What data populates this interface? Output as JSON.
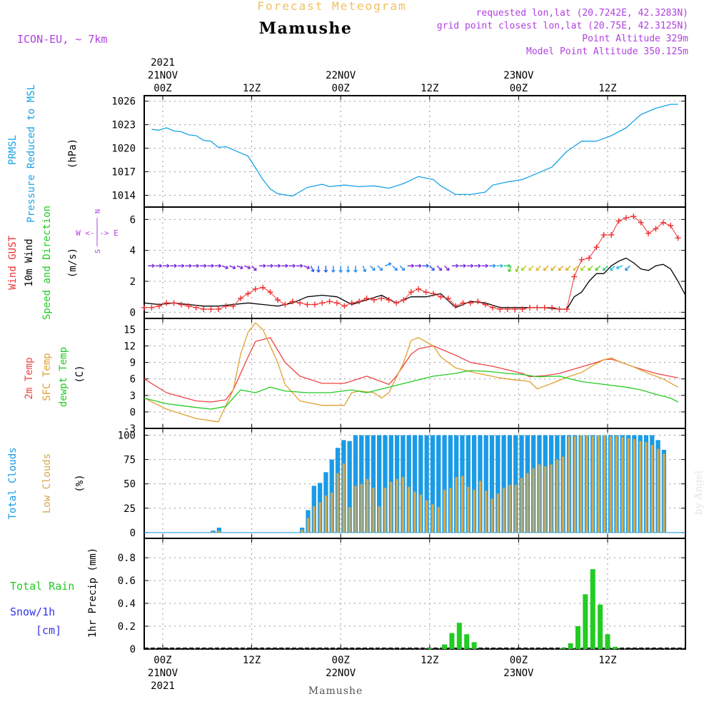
{
  "header": {
    "title": "Forecast Meteogram",
    "location": "Mamushe",
    "model": "ICON-EU, ~ 7km",
    "requested": "requested lon,lat (20.7242E, 42.3283N)",
    "grid": "grid point closest lon,lat (20.75E, 42.3125N)",
    "point_alt": "Point Altitude 329m",
    "model_alt": "Model Point Altitude 350.125m",
    "watermark": "by Angel",
    "footer_location": "Mamushe"
  },
  "time_axis": {
    "top_labels": [
      "00Z",
      "12Z",
      "00Z",
      "12Z",
      "00Z",
      "12Z"
    ],
    "top_dates": [
      "21NOV",
      "",
      "22NOV",
      "",
      "23NOV",
      ""
    ],
    "top_year": "2021",
    "bottom_labels": [
      "00Z",
      "12Z",
      "00Z",
      "12Z",
      "00Z",
      "12Z"
    ],
    "bottom_dates": [
      "21NOV",
      "",
      "22NOV",
      "",
      "23NOV",
      ""
    ],
    "bottom_year": "2021",
    "tick_hours": [
      0,
      12,
      24,
      36,
      48,
      60
    ],
    "hour_range": [
      -2.5,
      70.5
    ]
  },
  "labels": {
    "prmsl_1": "PRMSL",
    "prmsl_2": "Pressure Reduced to MSL",
    "prmsl_unit": "(hPa)",
    "gust": "Wind GUST",
    "wind10": "10m Wind",
    "speeddir": "Speed and Direction",
    "wind_unit": "(m/s)",
    "compass_n": "N",
    "compass_s": "S",
    "compass_we": "W <-|-> E",
    "t2m": "2m Temp",
    "sfc": "SFC Temp",
    "dewpt": "dewpt Temp",
    "temp_unit": "(C)",
    "total_clouds": "Total Clouds",
    "low_clouds": "Low Clouds",
    "cloud_unit": "(%)",
    "total_rain": "Total  Rain",
    "snow": "Snow/1h",
    "snow_unit": "[cm]",
    "precip": "1hr Precip (mm)"
  },
  "colors": {
    "pressure": "#1aa3e6",
    "gust": "#ee3333",
    "wind": "#000000",
    "t2m": "#ee4444",
    "sfc": "#e0a030",
    "dewpt": "#22cc22",
    "total_clouds": "#1a9be6",
    "low_clouds": "#d4a850",
    "rain": "#22cc22",
    "snow": "#3333ee",
    "purple": "#b040e0",
    "title_orange": "#f0c060"
  },
  "chart_data": [
    {
      "id": "pressure",
      "type": "line",
      "title": "PRMSL - Pressure Reduced to MSL",
      "ylabel": "(hPa)",
      "ylim": [
        1012.5,
        1026.7
      ],
      "yticks": [
        1014,
        1017,
        1020,
        1023,
        1026
      ],
      "x": [
        -1.5,
        -0.5,
        0.5,
        1.5,
        2.5,
        3.5,
        4.5,
        5.5,
        6.5,
        7.5,
        8.5,
        9.5,
        11.5,
        13.5,
        14.5,
        15.5,
        17.5,
        19.5,
        21.5,
        22.5,
        24.5,
        26.5,
        28.5,
        30.5,
        32.5,
        34.5,
        36.5,
        37.5,
        39.5,
        41.5,
        43.5,
        44.5,
        46.5,
        48.5,
        50.5,
        52.5,
        54.5,
        56.5,
        58.5,
        60.5,
        62.5,
        64.5,
        66.5,
        68.5,
        69.5
      ],
      "y": [
        1022.4,
        1022.3,
        1022.6,
        1022.2,
        1022.1,
        1021.7,
        1021.6,
        1021.0,
        1020.9,
        1020.1,
        1020.2,
        1019.8,
        1019.0,
        1016.0,
        1014.8,
        1014.2,
        1013.9,
        1015.0,
        1015.4,
        1015.1,
        1015.3,
        1015.1,
        1015.2,
        1014.9,
        1015.5,
        1016.4,
        1016.0,
        1015.2,
        1014.1,
        1014.1,
        1014.4,
        1015.3,
        1015.7,
        1016.0,
        1016.8,
        1017.6,
        1019.6,
        1020.9,
        1020.9,
        1021.6,
        1022.6,
        1024.3,
        1025.1,
        1025.6,
        1025.6
      ]
    },
    {
      "id": "wind",
      "type": "line",
      "title": "Wind GUST / 10m Wind Speed and Direction",
      "ylabel": "(m/s)",
      "ylim": [
        -0.4,
        6.8
      ],
      "yticks": [
        0,
        2,
        4,
        6
      ],
      "series": [
        {
          "name": "Wind GUST",
          "color": "#ee3333",
          "marker": "plus",
          "x": [
            -2.5,
            -1.5,
            -0.5,
            0.5,
            1.5,
            2.5,
            3.5,
            4.5,
            5.5,
            6.5,
            7.5,
            8.5,
            9.5,
            10.5,
            11.5,
            12.5,
            13.5,
            14.5,
            15.5,
            16.5,
            17.5,
            18.5,
            19.5,
            20.5,
            21.5,
            22.5,
            23.5,
            24.5,
            25.5,
            26.5,
            27.5,
            28.5,
            29.5,
            30.5,
            31.5,
            32.5,
            33.5,
            34.5,
            35.5,
            36.5,
            37.5,
            38.5,
            39.5,
            40.5,
            41.5,
            42.5,
            43.5,
            44.5,
            45.5,
            46.5,
            47.5,
            48.5,
            49.5,
            50.5,
            51.5,
            52.5,
            53.5,
            54.5,
            55.5,
            56.5,
            57.5,
            58.5,
            59.5,
            60.5,
            61.5,
            62.5,
            63.5,
            64.5,
            65.5,
            66.5,
            67.5,
            68.5,
            69.5
          ],
          "y": [
            0.3,
            0.3,
            0.4,
            0.6,
            0.6,
            0.5,
            0.4,
            0.3,
            0.2,
            0.2,
            0.2,
            0.4,
            0.4,
            0.9,
            1.2,
            1.5,
            1.6,
            1.3,
            0.8,
            0.5,
            0.7,
            0.6,
            0.5,
            0.5,
            0.6,
            0.7,
            0.6,
            0.4,
            0.6,
            0.7,
            0.9,
            0.8,
            0.9,
            0.8,
            0.6,
            0.8,
            1.3,
            1.5,
            1.3,
            1.2,
            1.0,
            0.9,
            0.4,
            0.6,
            0.6,
            0.7,
            0.5,
            0.3,
            0.2,
            0.2,
            0.2,
            0.2,
            0.3,
            0.3,
            0.3,
            0.3,
            0.2,
            0.2,
            2.3,
            3.4,
            3.5,
            4.2,
            5.0,
            5.0,
            5.9,
            6.1,
            6.2,
            5.8,
            5.1,
            5.4,
            5.8,
            5.6,
            4.8
          ]
        },
        {
          "name": "10m Wind",
          "color": "#000000",
          "marker": "none",
          "x": [
            -2.5,
            -0.5,
            1.5,
            3.5,
            5.5,
            7.5,
            9.5,
            11.5,
            13.5,
            15.5,
            17.5,
            19.5,
            21.5,
            23.5,
            25.5,
            27.5,
            29.5,
            31.5,
            33.5,
            35.5,
            37.5,
            39.5,
            41.5,
            43.5,
            45.5,
            47.5,
            49.5,
            51.5,
            53.5,
            54.5,
            55.5,
            56.5,
            57.5,
            58.5,
            59.5,
            60.5,
            61.5,
            62.5,
            63.5,
            64.5,
            65.5,
            66.5,
            67.5,
            68.5,
            69.5,
            70.5
          ],
          "y": [
            0.6,
            0.5,
            0.6,
            0.5,
            0.4,
            0.4,
            0.5,
            0.6,
            0.5,
            0.4,
            0.6,
            1.0,
            1.1,
            1.0,
            0.5,
            0.8,
            1.1,
            0.6,
            1.0,
            1.0,
            1.2,
            0.3,
            0.7,
            0.6,
            0.3,
            0.3,
            0.3,
            0.3,
            0.2,
            0.2,
            1.0,
            1.3,
            2.0,
            2.5,
            2.5,
            3.0,
            3.3,
            3.5,
            3.2,
            2.8,
            2.7,
            3.0,
            3.1,
            2.8,
            2.0,
            1.1
          ]
        }
      ],
      "barbs": {
        "y_level": 3.0,
        "dirs": [
          "E",
          "E",
          "E",
          "E",
          "E",
          "E",
          "E",
          "E",
          "E",
          "E",
          "ESE",
          "ESE",
          "ESE",
          "ESE",
          "SE",
          "E",
          "E",
          "E",
          "E",
          "E",
          "E",
          "ESE",
          "SSE",
          "S",
          "S",
          "S",
          "S",
          "S",
          "S",
          "SSE",
          "SE",
          "SE",
          "ENE",
          "SE",
          "SE",
          "E",
          "E",
          "E",
          "SE",
          "SE",
          "SE",
          "E",
          "E",
          "E",
          "E",
          "E",
          "E",
          "E",
          "E",
          "SSW",
          "SSW",
          "SW",
          "SW",
          "SW",
          "SW",
          "SW",
          "SW",
          "SW",
          "SW",
          "SW",
          "SW",
          "SW",
          "SW",
          "SW",
          "WSW",
          "SW"
        ],
        "colors": [
          "#7722dd",
          "#7722dd",
          "#7722dd",
          "#7722dd",
          "#7722dd",
          "#7722dd",
          "#7722dd",
          "#7722dd",
          "#7722dd",
          "#7722dd",
          "#7722dd",
          "#7722dd",
          "#7722dd",
          "#7722dd",
          "#7722dd",
          "#7722dd",
          "#7722dd",
          "#7722dd",
          "#7722dd",
          "#7722dd",
          "#7722dd",
          "#7722dd",
          "#2255ee",
          "#2255ee",
          "#2255ee",
          "#2288ee",
          "#2288ee",
          "#2288ee",
          "#2288ee",
          "#2288ee",
          "#2288ee",
          "#2288ee",
          "#2288ee",
          "#2288ee",
          "#2288ee",
          "#7722dd",
          "#7722dd",
          "#2255ee",
          "#2255ee",
          "#7722dd",
          "#7722dd",
          "#7722dd",
          "#7722dd",
          "#7722dd",
          "#7722dd",
          "#7722dd",
          "#2288ee",
          "#22bbdd",
          "#22cc77",
          "#55cc22",
          "#88cc22",
          "#aacc22",
          "#cccc22",
          "#ddbb22",
          "#ddaa22",
          "#ddaa22",
          "#ddaa22",
          "#ddaa22",
          "#cccc22",
          "#aacc22",
          "#88cc22",
          "#55cc22",
          "#22cc77",
          "#22bbdd",
          "#22bbdd",
          "#2288ee"
        ]
      }
    },
    {
      "id": "temperature",
      "type": "line",
      "title": "2m Temp / SFC Temp / dewpt Temp",
      "ylabel": "(C)",
      "ylim": [
        -3,
        17
      ],
      "yticks": [
        -3,
        0,
        3,
        6,
        9,
        12,
        15
      ],
      "series": [
        {
          "name": "2m Temp",
          "color": "#ee4444",
          "x": [
            -2.5,
            0.5,
            4.5,
            6.5,
            8.5,
            9.5,
            11.5,
            12.5,
            14.5,
            16.5,
            18.5,
            21.5,
            24.5,
            27.5,
            29.5,
            30.5,
            31.5,
            32.5,
            33.5,
            34.5,
            36.5,
            39.5,
            41.5,
            44.5,
            48.5,
            49.5,
            51.5,
            53.5,
            56.5,
            58.5,
            59.5,
            60.5,
            61.5,
            63.5,
            66.5,
            69.5
          ],
          "y": [
            6.0,
            3.5,
            2.0,
            1.8,
            2.2,
            4.0,
            10.0,
            12.8,
            13.5,
            9.0,
            6.5,
            5.2,
            5.2,
            6.5,
            5.5,
            5.0,
            6.5,
            8.5,
            10.5,
            11.5,
            12.0,
            10.3,
            9.0,
            8.3,
            7.0,
            6.4,
            6.6,
            7.0,
            8.2,
            9.0,
            9.5,
            9.6,
            9.2,
            8.2,
            7.0,
            6.2
          ]
        },
        {
          "name": "SFC Temp",
          "color": "#e0a030",
          "x": [
            -2.5,
            0.5,
            4.5,
            7.5,
            9.5,
            10.5,
            11.5,
            12.5,
            13.5,
            15.5,
            16.5,
            18.5,
            21.5,
            24.5,
            25.5,
            26.5,
            28.5,
            29.5,
            30.5,
            32.5,
            33.5,
            34.5,
            36.5,
            37.5,
            39.5,
            42.5,
            45.5,
            47.5,
            48.5,
            49.5,
            50.5,
            52.5,
            54.5,
            56.5,
            58.5,
            59.5,
            60.5,
            61.5,
            63.5,
            65.5,
            67.5,
            69.5
          ],
          "y": [
            2.5,
            0.5,
            -1.2,
            -1.8,
            4.0,
            10.5,
            14.5,
            16.2,
            15.0,
            9.0,
            5.0,
            2.0,
            1.2,
            1.2,
            3.5,
            3.8,
            3.5,
            2.5,
            3.5,
            9.0,
            13.0,
            13.5,
            12.0,
            10.0,
            8.0,
            7.0,
            6.2,
            5.8,
            5.7,
            5.5,
            4.2,
            5.2,
            6.3,
            7.2,
            8.8,
            9.5,
            9.8,
            9.2,
            8.2,
            7.0,
            6.0,
            4.5
          ]
        },
        {
          "name": "dewpt Temp",
          "color": "#22cc22",
          "x": [
            -2.5,
            0.5,
            4.5,
            6.5,
            8.5,
            10.5,
            12.5,
            14.5,
            16.5,
            19.5,
            22.5,
            25.5,
            27.5,
            30.5,
            33.5,
            36.5,
            39.5,
            40.5,
            41.5,
            43.5,
            46.5,
            48.5,
            50.5,
            53.5,
            56.5,
            59.5,
            62.5,
            64.5,
            66.5,
            68.5,
            69.5
          ],
          "y": [
            2.5,
            1.5,
            0.8,
            0.5,
            1.0,
            4.0,
            3.5,
            4.5,
            3.8,
            3.5,
            3.5,
            4.0,
            3.5,
            4.5,
            5.5,
            6.5,
            7.0,
            7.3,
            7.5,
            7.4,
            7.0,
            6.8,
            6.4,
            6.5,
            5.5,
            5.0,
            4.5,
            4.0,
            3.2,
            2.5,
            1.8
          ]
        }
      ]
    },
    {
      "id": "clouds",
      "type": "bar",
      "title": "Total Clouds / Low Clouds",
      "ylabel": "(%)",
      "ylim": [
        -6,
        107
      ],
      "yticks": [
        0,
        25,
        50,
        75,
        100
      ],
      "start_hour": -2,
      "series": [
        {
          "name": "Total Clouds",
          "color": "#1a9be6",
          "values": [
            0,
            0,
            0,
            0,
            0,
            0,
            0,
            0,
            0,
            0,
            0,
            2,
            5,
            0,
            0,
            0,
            0,
            0,
            0,
            0,
            0,
            0,
            0,
            0,
            0,
            0,
            5,
            23,
            48,
            51,
            62,
            75,
            87,
            95,
            94,
            100,
            100,
            100,
            100,
            100,
            100,
            100,
            100,
            100,
            100,
            100,
            100,
            100,
            100,
            100,
            100,
            100,
            100,
            100,
            100,
            100,
            100,
            100,
            100,
            100,
            100,
            100,
            100,
            100,
            100,
            100,
            100,
            100,
            100,
            100,
            100,
            100,
            100,
            100,
            100,
            100,
            100,
            100,
            100,
            100,
            100,
            100,
            100,
            100,
            100,
            100,
            95,
            85
          ]
        },
        {
          "name": "Low Clouds",
          "color": "#d4a850",
          "values": [
            0,
            0,
            0,
            0,
            0,
            0,
            0,
            0,
            0,
            0,
            0,
            1,
            2,
            0,
            0,
            0,
            0,
            0,
            0,
            0,
            0,
            0,
            0,
            0,
            0,
            0,
            3,
            15,
            27,
            31,
            38,
            41,
            61,
            71,
            26,
            48,
            50,
            55,
            46,
            27,
            46,
            52,
            55,
            57,
            47,
            42,
            39,
            33,
            29,
            26,
            44,
            46,
            57,
            58,
            47,
            44,
            53,
            43,
            35,
            40,
            46,
            49,
            49,
            56,
            61,
            66,
            70,
            68,
            70,
            75,
            78,
            99,
            99,
            100,
            100,
            99,
            100,
            100,
            99,
            99,
            98,
            97,
            96,
            94,
            93,
            90,
            86,
            81
          ]
        }
      ]
    },
    {
      "id": "precip",
      "type": "bar",
      "title": "1hr Precip (mm)",
      "ylabel": "1hr Precip (mm)",
      "ylim": [
        0,
        0.97
      ],
      "yticks": [
        0,
        0.2,
        0.4,
        0.6,
        0.8
      ],
      "series": [
        {
          "name": "Total Rain",
          "color": "#22cc22",
          "x": [
            36,
            38,
            39,
            40,
            41,
            42,
            54,
            55,
            56,
            57,
            58,
            59,
            60,
            61
          ],
          "values": [
            0.01,
            0.04,
            0.14,
            0.23,
            0.13,
            0.06,
            0.01,
            0.05,
            0.2,
            0.48,
            0.7,
            0.39,
            0.13,
            0.02
          ]
        }
      ]
    }
  ]
}
